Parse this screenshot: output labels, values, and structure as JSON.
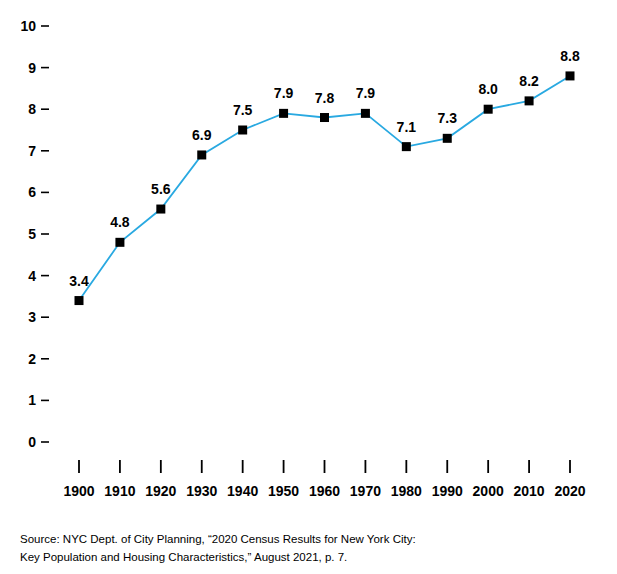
{
  "chart_data": {
    "type": "line",
    "x": [
      1900,
      1910,
      1920,
      1930,
      1940,
      1950,
      1960,
      1970,
      1980,
      1990,
      2000,
      2010,
      2020
    ],
    "values": [
      3.4,
      4.8,
      5.6,
      6.9,
      7.5,
      7.9,
      7.8,
      7.9,
      7.1,
      7.3,
      8.0,
      8.2,
      8.8
    ],
    "value_labels": [
      "3.4",
      "4.8",
      "5.6",
      "6.9",
      "7.5",
      "7.9",
      "7.8",
      "7.9",
      "7.1",
      "7.3",
      "8.0",
      "8.2",
      "8.8"
    ],
    "color": "#29a9e1",
    "marker": "square",
    "line_style": "solid",
    "xlim": [
      1900,
      2020
    ],
    "xticks": [
      1900,
      1910,
      1920,
      1930,
      1940,
      1950,
      1960,
      1970,
      1980,
      1990,
      2000,
      2010,
      2020
    ],
    "ylim": [
      0,
      10
    ],
    "yticks": [
      0,
      1,
      2,
      3,
      4,
      5,
      6,
      7,
      8,
      9,
      10
    ],
    "grid": false,
    "data_labels": true,
    "annotations": [
      "Source: NYC Dept. of City Planning, “2020 Census Results for New York City:",
      "Key Population and Housing Characteristics,” August 2021, p. 7."
    ]
  }
}
